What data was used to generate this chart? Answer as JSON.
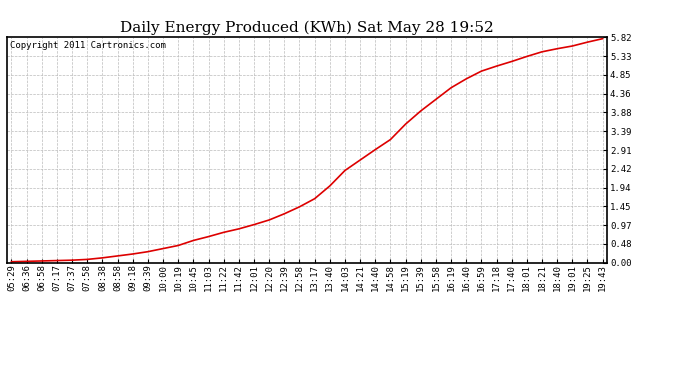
{
  "title": "Daily Energy Produced (KWh) Sat May 28 19:52",
  "copyright": "Copyright 2011 Cartronics.com",
  "line_color": "#dd0000",
  "background_color": "#ffffff",
  "grid_color": "#bbbbbb",
  "ylim": [
    0.0,
    5.82
  ],
  "yticks": [
    0.0,
    0.48,
    0.97,
    1.45,
    1.94,
    2.42,
    2.91,
    3.39,
    3.88,
    4.36,
    4.85,
    5.33,
    5.82
  ],
  "xtick_labels": [
    "05:29",
    "06:36",
    "06:58",
    "07:17",
    "07:37",
    "07:58",
    "08:38",
    "08:58",
    "09:18",
    "09:39",
    "10:00",
    "10:19",
    "10:45",
    "11:03",
    "11:22",
    "11:42",
    "12:01",
    "12:20",
    "12:39",
    "12:58",
    "13:17",
    "13:40",
    "14:03",
    "14:21",
    "14:40",
    "14:58",
    "15:19",
    "15:39",
    "15:58",
    "16:19",
    "16:40",
    "16:59",
    "17:18",
    "17:40",
    "18:01",
    "18:21",
    "18:40",
    "19:01",
    "19:25",
    "19:43"
  ],
  "y_values": [
    0.02,
    0.03,
    0.04,
    0.05,
    0.06,
    0.08,
    0.12,
    0.17,
    0.22,
    0.28,
    0.36,
    0.44,
    0.57,
    0.67,
    0.78,
    0.87,
    0.98,
    1.1,
    1.26,
    1.44,
    1.65,
    1.98,
    2.38,
    2.65,
    2.92,
    3.18,
    3.58,
    3.92,
    4.22,
    4.52,
    4.75,
    4.95,
    5.08,
    5.2,
    5.33,
    5.45,
    5.53,
    5.6,
    5.7,
    5.79
  ],
  "title_fontsize": 11,
  "tick_fontsize": 6.5,
  "copyright_fontsize": 6.5,
  "fig_width": 6.9,
  "fig_height": 3.75,
  "dpi": 100
}
